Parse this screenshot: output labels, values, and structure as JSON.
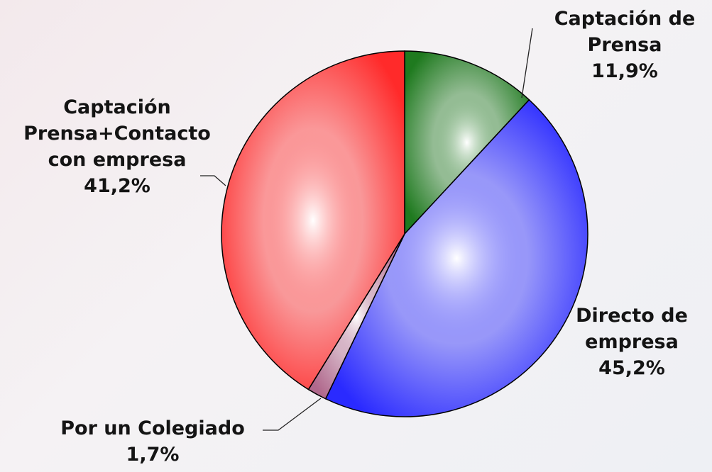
{
  "chart_data": {
    "type": "pie",
    "categories": [
      "Captación de Prensa",
      "Directo de empresa",
      "Por un Colegiado",
      "Captación Prensa+Contacto con empresa"
    ],
    "values": [
      11.9,
      45.2,
      1.7,
      41.2
    ],
    "value_labels": [
      "11,9%",
      "45,2%",
      "1,7%",
      "41,2%"
    ],
    "colors": [
      "#1f7a1f",
      "#2a2aff",
      "#b0688c",
      "#ff2a2a"
    ]
  }
}
